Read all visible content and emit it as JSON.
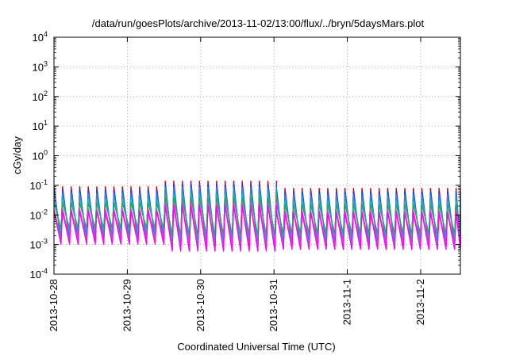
{
  "chart_data": {
    "type": "line",
    "title": "/data/run/goesPlots/archive/2013-11-02/13:00/flux/../bryn/5daysMars.plot",
    "xlabel": "Coordinated Universal Time (UTC)",
    "ylabel": "cGy/day",
    "yscale": "log",
    "ylim": [
      0.0001,
      10000
    ],
    "yticks": [
      {
        "value": 0.0001,
        "base": "10",
        "exp": "-4"
      },
      {
        "value": 0.001,
        "base": "10",
        "exp": "-3"
      },
      {
        "value": 0.01,
        "base": "10",
        "exp": "-2"
      },
      {
        "value": 0.1,
        "base": "10",
        "exp": "-1"
      },
      {
        "value": 1,
        "base": "10",
        "exp": "0"
      },
      {
        "value": 10,
        "base": "10",
        "exp": "1"
      },
      {
        "value": 100,
        "base": "10",
        "exp": "2"
      },
      {
        "value": 1000,
        "base": "10",
        "exp": "3"
      },
      {
        "value": 10000,
        "base": "10",
        "exp": "4"
      }
    ],
    "xlim": [
      "2013-10-28",
      "2013-11-02T13:00"
    ],
    "xticks": [
      {
        "value": "2013-10-28",
        "label": "2013-10-28"
      },
      {
        "value": "2013-10-29",
        "label": "2013-10-29"
      },
      {
        "value": "2013-10-30",
        "label": "2013-10-30"
      },
      {
        "value": "2013-10-31",
        "label": "2013-10-31"
      },
      {
        "value": "2013-11-01",
        "label": "2013-11-1"
      },
      {
        "value": "2013-11-02",
        "label": "2013-11-2"
      }
    ],
    "grid": true,
    "legend": "none",
    "oscillation_period_hours": 2.8,
    "segments": [
      {
        "start": "2013-10-28",
        "end": "2013-10-29T12:00",
        "peak": 0.09,
        "trough": 0.0012
      },
      {
        "start": "2013-10-29T12:00",
        "end": "2013-10-30T22:00",
        "peak": 0.14,
        "trough": 0.0007
      },
      {
        "start": "2013-10-30T22:00",
        "end": "2013-11-02T13:00",
        "peak": 0.08,
        "trough": 0.0008
      }
    ],
    "series": [
      {
        "color": "#e00000",
        "peak_scale": 1.0,
        "trough_scale": 1.0
      },
      {
        "color": "#1a3cff",
        "peak_scale": 0.8,
        "trough_scale": 1.3
      },
      {
        "color": "#2090e0",
        "peak_scale": 0.6,
        "trough_scale": 1.7
      },
      {
        "color": "#00c8c8",
        "peak_scale": 0.35,
        "trough_scale": 2.3
      },
      {
        "color": "#30a060",
        "peak_scale": 0.28,
        "trough_scale": 3.0
      },
      {
        "color": "#b060c0",
        "peak_scale": 0.18,
        "trough_scale": 1.2
      },
      {
        "color": "#ff00ff",
        "peak_scale": 0.15,
        "trough_scale": 0.85
      }
    ]
  }
}
